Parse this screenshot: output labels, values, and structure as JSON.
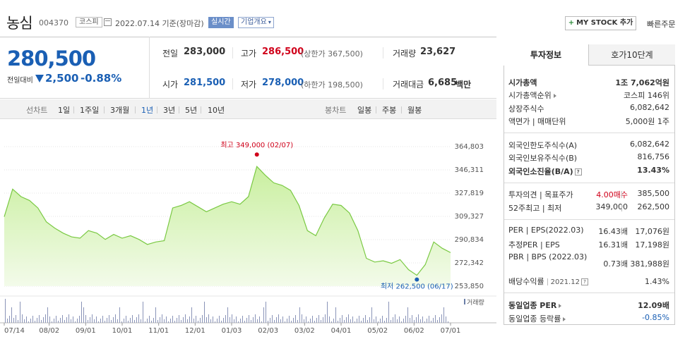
{
  "header": {
    "stock_name": "농심",
    "stock_code": "004370",
    "market_badge": "코스피",
    "date_text": "2022.07.14 기준(장마감)",
    "live_badge": "실시간",
    "overview_dropdown": "기업개요",
    "mystock_label": "MY STOCK 추가",
    "quick_order": "빠른주문"
  },
  "price": {
    "current": "280,500",
    "change_label": "전일대비",
    "change_amount": "2,500",
    "change_percent": "-0.88%"
  },
  "quote": {
    "prev_close": {
      "label": "전일",
      "value": "283,000"
    },
    "high": {
      "label": "고가",
      "value": "286,500",
      "sub": "(상한가 367,500)"
    },
    "volume": {
      "label": "거래량",
      "value": "23,627"
    },
    "open": {
      "label": "시가",
      "value": "281,500"
    },
    "low": {
      "label": "저가",
      "value": "278,000",
      "sub": "(하한가 198,500)"
    },
    "amount": {
      "label": "거래대금",
      "value": "6,685",
      "unit": "백만"
    }
  },
  "period_bar": {
    "line_label": "선차트",
    "periods": [
      "1일",
      "1주일",
      "3개월",
      "1년",
      "3년",
      "5년",
      "10년"
    ],
    "selected": "1년",
    "candle_label": "봉차트",
    "candles": [
      "일봉",
      "주봉",
      "월봉"
    ]
  },
  "chart_data": {
    "type": "area",
    "x": [
      "07/14",
      "07/21",
      "07/28",
      "08/04",
      "08/11",
      "08/18",
      "08/25",
      "09/01",
      "09/08",
      "09/15",
      "09/22",
      "09/29",
      "10/06",
      "10/13",
      "10/20",
      "10/27",
      "11/03",
      "11/10",
      "11/17",
      "11/24",
      "12/01",
      "12/08",
      "12/15",
      "12/22",
      "12/29",
      "01/05",
      "01/12",
      "01/19",
      "01/26",
      "02/02",
      "02/07",
      "02/14",
      "02/21",
      "02/28",
      "03/07",
      "03/14",
      "03/21",
      "03/28",
      "04/04",
      "04/11",
      "04/18",
      "04/25",
      "05/02",
      "05/09",
      "05/16",
      "05/23",
      "05/30",
      "06/06",
      "06/13",
      "06/17",
      "06/24",
      "07/01",
      "07/08",
      "07/14"
    ],
    "values": [
      309000,
      331000,
      325000,
      322000,
      316000,
      305000,
      300000,
      296000,
      293000,
      292000,
      298000,
      296000,
      291000,
      295000,
      292000,
      294000,
      291000,
      287000,
      289000,
      290000,
      316000,
      318000,
      321000,
      317000,
      313000,
      316000,
      319000,
      321000,
      319000,
      325000,
      349000,
      342000,
      336000,
      334000,
      330000,
      318000,
      298000,
      294000,
      308000,
      319000,
      318000,
      312000,
      298000,
      276000,
      273000,
      274000,
      272000,
      275000,
      267000,
      262500,
      271000,
      289000,
      284000,
      280500
    ],
    "y_ticks": [
      "364,803",
      "346,311",
      "327,819",
      "309,327",
      "290,834",
      "272,342",
      "253,850"
    ],
    "ylim": [
      253850,
      364803
    ],
    "x_labels": [
      "07/14",
      "08/02",
      "09/01",
      "10/01",
      "11/01",
      "12/01",
      "01/03",
      "02/03",
      "03/02",
      "04/01",
      "05/02",
      "06/02",
      "07/01"
    ],
    "max_label": "최고 349,000 (02/07)",
    "min_label": "최저 262,500 (06/17)",
    "volume_label": "거래량",
    "colors": {
      "line": "#7ac943",
      "fill_top": "#c9ef9f",
      "fill_bottom": "#f3fbea",
      "max": "#d0021b",
      "min": "#1a5fb4"
    }
  },
  "tabs": {
    "invest": "투자정보",
    "hoga": "호가10단계"
  },
  "invest": {
    "market_cap": {
      "label": "시가총액",
      "value": "1조 7,062억원"
    },
    "market_cap_rank": {
      "label": "시가총액순위",
      "value": "코스피 146위"
    },
    "listed_shares": {
      "label": "상장주식수",
      "value": "6,082,642"
    },
    "par_unit": {
      "label": "액면가 | 매매단위",
      "value": "5,000원  1주"
    },
    "foreign_limit": {
      "label": "외국인한도주식수(A)",
      "value": "6,082,642"
    },
    "foreign_hold": {
      "label": "외국인보유주식수(B)",
      "value": "816,756"
    },
    "foreign_ratio": {
      "label": "외국인소진율(B/A)",
      "value": "13.43%"
    },
    "opinion": {
      "label": "투자의견 | 목표주가",
      "value1": "4.00매수",
      "value2": "385,500"
    },
    "week52": {
      "label": "52주최고 | 최저",
      "value1": "349,000",
      "value2": "262,500"
    },
    "per_eps": {
      "label": "PER | EPS(2022.03)",
      "value1": "16.43배",
      "value2": "17,076원"
    },
    "est_per_eps": {
      "label": "추정PER | EPS",
      "value1": "16.31배",
      "value2": "17,198원"
    },
    "pbr_bps": {
      "label": "PBR | BPS (2022.03)",
      "value1": "0.73배",
      "value2": "381,988원"
    },
    "dividend": {
      "label": "배당수익률",
      "date": "2021.12",
      "value": "1.43%"
    },
    "sector_per": {
      "label": "동일업종 PER",
      "value": "12.09배"
    },
    "sector_rate": {
      "label": "동일업종 등락률",
      "value": "-0.85%"
    }
  }
}
